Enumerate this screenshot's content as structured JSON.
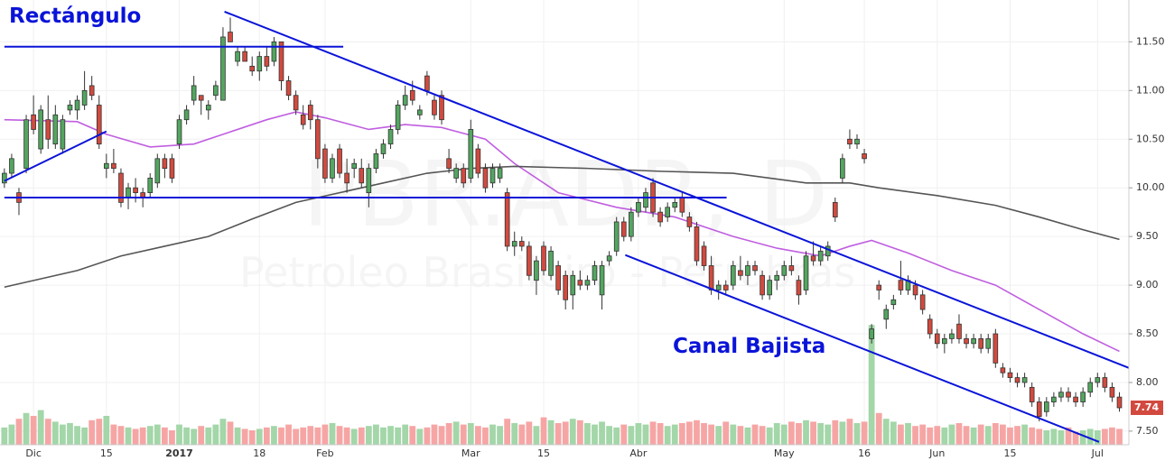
{
  "chart_data": {
    "type": "candlestick",
    "watermark": {
      "symbol": "PBR.ADR, D",
      "name": "Petroleo Brasileiro - Petrobras"
    },
    "annotations": [
      "Rectángulo",
      "Canal Bajista"
    ],
    "up_color": "#53a660",
    "down_color": "#d24a3f",
    "volume_up_color": "#a3d6a8",
    "volume_down_color": "#f6a5a5",
    "xlim": [
      -0.6,
      154.3
    ],
    "ylim": [
      7.36,
      11.93
    ],
    "vlim": [
      0,
      100
    ],
    "yticks": [
      {
        "value": 7.5,
        "label": "7.50"
      },
      {
        "value": 8,
        "label": "8.00"
      },
      {
        "value": 8.5,
        "label": "8.50"
      },
      {
        "value": 9,
        "label": "9.00"
      },
      {
        "value": 9.5,
        "label": "9.50"
      },
      {
        "value": 10,
        "label": "10.00"
      },
      {
        "value": 10.5,
        "label": "10.50"
      },
      {
        "value": 11,
        "label": "11.00"
      },
      {
        "value": 11.5,
        "label": "11.50"
      }
    ],
    "xticks": [
      {
        "value": 4,
        "label": "Dic"
      },
      {
        "value": 14,
        "label": "15"
      },
      {
        "value": 24,
        "label": "2017"
      },
      {
        "value": 35,
        "label": "18"
      },
      {
        "value": 44,
        "label": "Feb"
      },
      {
        "value": 64,
        "label": "Mar"
      },
      {
        "value": 74,
        "label": "15"
      },
      {
        "value": 87,
        "label": "Abr"
      },
      {
        "value": 107,
        "label": "May"
      },
      {
        "value": 118,
        "label": "16"
      },
      {
        "value": 128,
        "label": "Jun"
      },
      {
        "value": 138,
        "label": "15"
      },
      {
        "value": 150,
        "label": "Jul"
      }
    ],
    "ohlc": [
      [
        10.05,
        10.2,
        10.0,
        10.15
      ],
      [
        10.15,
        10.35,
        10.1,
        10.3
      ],
      [
        9.95,
        10.0,
        9.72,
        9.85
      ],
      [
        10.2,
        10.75,
        10.15,
        10.7
      ],
      [
        10.75,
        10.95,
        10.55,
        10.6
      ],
      [
        10.4,
        10.85,
        10.35,
        10.8
      ],
      [
        10.7,
        10.95,
        10.4,
        10.5
      ],
      [
        10.45,
        10.85,
        10.4,
        10.75
      ],
      [
        10.4,
        10.75,
        10.35,
        10.7
      ],
      [
        10.8,
        10.9,
        10.75,
        10.85
      ],
      [
        10.8,
        10.95,
        10.7,
        10.9
      ],
      [
        10.85,
        11.2,
        10.8,
        11.0
      ],
      [
        11.05,
        11.15,
        10.9,
        10.95
      ],
      [
        10.85,
        10.95,
        10.4,
        10.45
      ],
      [
        10.2,
        10.35,
        10.1,
        10.25
      ],
      [
        10.25,
        10.4,
        10.15,
        10.2
      ],
      [
        10.15,
        10.2,
        9.8,
        9.85
      ],
      [
        9.9,
        10.05,
        9.78,
        10.0
      ],
      [
        10.0,
        10.1,
        9.85,
        9.95
      ],
      [
        9.95,
        10.0,
        9.8,
        9.9
      ],
      [
        9.95,
        10.15,
        9.9,
        10.1
      ],
      [
        10.05,
        10.35,
        10.0,
        10.3
      ],
      [
        10.3,
        10.35,
        10.1,
        10.2
      ],
      [
        10.3,
        10.35,
        10.05,
        10.1
      ],
      [
        10.45,
        10.75,
        10.4,
        10.7
      ],
      [
        10.7,
        10.85,
        10.65,
        10.8
      ],
      [
        10.9,
        11.15,
        10.85,
        11.05
      ],
      [
        10.95,
        10.95,
        10.75,
        10.9
      ],
      [
        10.8,
        10.9,
        10.7,
        10.85
      ],
      [
        10.95,
        11.1,
        10.9,
        11.05
      ],
      [
        10.9,
        11.65,
        10.9,
        11.55
      ],
      [
        11.6,
        11.75,
        11.5,
        11.5
      ],
      [
        11.3,
        11.45,
        11.25,
        11.4
      ],
      [
        11.4,
        11.45,
        11.3,
        11.3
      ],
      [
        11.25,
        11.35,
        11.15,
        11.2
      ],
      [
        11.2,
        11.4,
        11.1,
        11.35
      ],
      [
        11.35,
        11.45,
        11.2,
        11.25
      ],
      [
        11.3,
        11.55,
        11.25,
        11.5
      ],
      [
        11.5,
        11.5,
        11.0,
        11.1
      ],
      [
        11.1,
        11.15,
        10.9,
        10.95
      ],
      [
        10.95,
        11.0,
        10.75,
        10.8
      ],
      [
        10.75,
        10.85,
        10.6,
        10.65
      ],
      [
        10.85,
        10.9,
        10.6,
        10.7
      ],
      [
        10.7,
        10.75,
        10.2,
        10.3
      ],
      [
        10.4,
        10.45,
        10.05,
        10.1
      ],
      [
        10.1,
        10.35,
        10.05,
        10.3
      ],
      [
        10.4,
        10.45,
        10.1,
        10.15
      ],
      [
        10.15,
        10.3,
        9.95,
        10.05
      ],
      [
        10.2,
        10.3,
        10.1,
        10.25
      ],
      [
        10.2,
        10.3,
        10.0,
        10.05
      ],
      [
        9.95,
        10.25,
        9.8,
        10.2
      ],
      [
        10.2,
        10.4,
        10.15,
        10.35
      ],
      [
        10.35,
        10.5,
        10.3,
        10.45
      ],
      [
        10.45,
        10.65,
        10.4,
        10.6
      ],
      [
        10.6,
        10.9,
        10.55,
        10.85
      ],
      [
        10.85,
        11.05,
        10.8,
        10.95
      ],
      [
        11.0,
        11.1,
        10.85,
        10.9
      ],
      [
        10.75,
        10.85,
        10.7,
        10.8
      ],
      [
        11.15,
        11.2,
        10.95,
        11.0
      ],
      [
        10.9,
        10.95,
        10.7,
        10.75
      ],
      [
        10.95,
        11.0,
        10.65,
        10.7
      ],
      [
        10.3,
        10.4,
        10.15,
        10.2
      ],
      [
        10.1,
        10.25,
        10.05,
        10.2
      ],
      [
        10.2,
        10.25,
        10.0,
        10.05
      ],
      [
        10.1,
        10.7,
        10.05,
        10.6
      ],
      [
        10.4,
        10.45,
        10.1,
        10.15
      ],
      [
        10.2,
        10.25,
        9.95,
        10.0
      ],
      [
        10.05,
        10.25,
        10.0,
        10.2
      ],
      [
        10.1,
        10.25,
        10.05,
        10.2
      ],
      [
        9.95,
        10.0,
        9.35,
        9.4
      ],
      [
        9.4,
        9.55,
        9.3,
        9.45
      ],
      [
        9.45,
        9.5,
        9.35,
        9.4
      ],
      [
        9.4,
        9.45,
        9.05,
        9.1
      ],
      [
        9.05,
        9.3,
        8.9,
        9.25
      ],
      [
        9.4,
        9.45,
        9.1,
        9.15
      ],
      [
        9.1,
        9.4,
        9.05,
        9.35
      ],
      [
        9.2,
        9.25,
        8.9,
        8.95
      ],
      [
        9.1,
        9.15,
        8.75,
        8.85
      ],
      [
        8.9,
        9.15,
        8.75,
        9.1
      ],
      [
        9.05,
        9.15,
        8.95,
        9.0
      ],
      [
        9.0,
        9.1,
        8.95,
        9.05
      ],
      [
        9.05,
        9.25,
        9.0,
        9.2
      ],
      [
        8.9,
        9.25,
        8.75,
        9.2
      ],
      [
        9.25,
        9.35,
        9.2,
        9.3
      ],
      [
        9.35,
        9.7,
        9.3,
        9.65
      ],
      [
        9.65,
        9.7,
        9.45,
        9.5
      ],
      [
        9.5,
        9.8,
        9.45,
        9.75
      ],
      [
        9.75,
        9.9,
        9.7,
        9.85
      ],
      [
        9.8,
        10.0,
        9.75,
        9.95
      ],
      [
        10.05,
        10.1,
        9.7,
        9.75
      ],
      [
        9.75,
        9.8,
        9.6,
        9.65
      ],
      [
        9.7,
        9.85,
        9.65,
        9.8
      ],
      [
        9.8,
        9.9,
        9.75,
        9.85
      ],
      [
        9.9,
        9.95,
        9.7,
        9.75
      ],
      [
        9.7,
        9.75,
        9.55,
        9.6
      ],
      [
        9.6,
        9.65,
        9.2,
        9.25
      ],
      [
        9.4,
        9.45,
        9.15,
        9.2
      ],
      [
        9.2,
        9.3,
        8.9,
        8.95
      ],
      [
        8.95,
        9.05,
        8.85,
        9.0
      ],
      [
        9.0,
        9.05,
        8.9,
        8.95
      ],
      [
        9.0,
        9.25,
        8.95,
        9.2
      ],
      [
        9.15,
        9.3,
        9.05,
        9.1
      ],
      [
        9.1,
        9.25,
        9.0,
        9.2
      ],
      [
        9.2,
        9.25,
        9.1,
        9.15
      ],
      [
        9.1,
        9.15,
        8.85,
        8.9
      ],
      [
        8.9,
        9.1,
        8.85,
        9.05
      ],
      [
        9.05,
        9.15,
        8.95,
        9.1
      ],
      [
        9.1,
        9.25,
        9.05,
        9.2
      ],
      [
        9.2,
        9.3,
        9.1,
        9.15
      ],
      [
        9.05,
        9.1,
        8.8,
        8.9
      ],
      [
        8.95,
        9.35,
        8.9,
        9.3
      ],
      [
        9.3,
        9.45,
        9.2,
        9.25
      ],
      [
        9.25,
        9.4,
        9.2,
        9.35
      ],
      [
        9.3,
        9.45,
        9.25,
        9.4
      ],
      [
        9.85,
        9.9,
        9.65,
        9.7
      ],
      [
        10.1,
        10.35,
        10.05,
        10.3
      ],
      [
        10.5,
        10.6,
        10.4,
        10.45
      ],
      [
        10.45,
        10.55,
        10.4,
        10.5
      ],
      [
        10.35,
        10.4,
        10.25,
        10.3
      ],
      [
        8.45,
        8.6,
        8.4,
        8.55
      ],
      [
        9.0,
        9.05,
        8.85,
        8.95
      ],
      [
        8.65,
        8.8,
        8.55,
        8.75
      ],
      [
        8.8,
        8.9,
        8.75,
        8.85
      ],
      [
        9.05,
        9.25,
        8.9,
        8.95
      ],
      [
        8.95,
        9.1,
        8.9,
        9.05
      ],
      [
        9.0,
        9.05,
        8.85,
        8.9
      ],
      [
        8.9,
        8.95,
        8.7,
        8.75
      ],
      [
        8.65,
        8.7,
        8.45,
        8.5
      ],
      [
        8.5,
        8.55,
        8.35,
        8.4
      ],
      [
        8.4,
        8.5,
        8.3,
        8.45
      ],
      [
        8.45,
        8.55,
        8.4,
        8.5
      ],
      [
        8.6,
        8.7,
        8.4,
        8.45
      ],
      [
        8.45,
        8.5,
        8.35,
        8.4
      ],
      [
        8.4,
        8.5,
        8.35,
        8.45
      ],
      [
        8.45,
        8.5,
        8.3,
        8.35
      ],
      [
        8.35,
        8.5,
        8.3,
        8.45
      ],
      [
        8.5,
        8.55,
        8.15,
        8.2
      ],
      [
        8.15,
        8.2,
        8.05,
        8.1
      ],
      [
        8.1,
        8.15,
        8.0,
        8.05
      ],
      [
        8.05,
        8.1,
        7.95,
        8.0
      ],
      [
        8.0,
        8.1,
        7.95,
        8.05
      ],
      [
        7.95,
        8.0,
        7.75,
        7.8
      ],
      [
        7.8,
        7.85,
        7.6,
        7.65
      ],
      [
        7.7,
        7.85,
        7.65,
        7.8
      ],
      [
        7.8,
        7.9,
        7.75,
        7.85
      ],
      [
        7.85,
        7.95,
        7.8,
        7.9
      ],
      [
        7.9,
        7.95,
        7.8,
        7.85
      ],
      [
        7.85,
        7.9,
        7.75,
        7.8
      ],
      [
        7.8,
        7.95,
        7.75,
        7.9
      ],
      [
        7.9,
        8.05,
        7.85,
        8.0
      ],
      [
        8.0,
        8.1,
        7.95,
        8.05
      ],
      [
        8.05,
        8.1,
        7.9,
        7.95
      ],
      [
        7.95,
        8.0,
        7.8,
        7.85
      ],
      [
        7.85,
        7.9,
        7.7,
        7.74
      ]
    ],
    "volume": [
      12,
      14,
      18,
      22,
      20,
      24,
      18,
      16,
      14,
      15,
      13,
      12,
      17,
      18,
      20,
      14,
      13,
      12,
      11,
      12,
      13,
      14,
      12,
      10,
      14,
      12,
      11,
      13,
      12,
      14,
      18,
      16,
      12,
      11,
      10,
      11,
      12,
      13,
      12,
      14,
      11,
      12,
      13,
      12,
      14,
      15,
      13,
      12,
      11,
      12,
      13,
      14,
      12,
      13,
      12,
      14,
      13,
      11,
      12,
      14,
      13,
      15,
      16,
      14,
      15,
      13,
      12,
      14,
      13,
      18,
      15,
      14,
      16,
      13,
      19,
      17,
      15,
      16,
      18,
      17,
      15,
      14,
      16,
      13,
      12,
      14,
      13,
      15,
      14,
      16,
      15,
      13,
      14,
      15,
      16,
      17,
      15,
      14,
      13,
      16,
      14,
      13,
      12,
      14,
      13,
      12,
      15,
      14,
      16,
      15,
      17,
      16,
      15,
      14,
      17,
      16,
      18,
      15,
      16,
      83,
      22,
      18,
      16,
      14,
      15,
      13,
      14,
      12,
      13,
      12,
      14,
      15,
      13,
      12,
      14,
      13,
      15,
      14,
      12,
      13,
      14,
      12,
      11,
      10,
      11,
      10,
      12,
      9,
      10,
      11,
      10,
      11,
      12,
      11
    ],
    "moving_averages": [
      {
        "color": "#c05ee0",
        "x": [
          0,
          10,
          14,
          20,
          26,
          30,
          36,
          40,
          44,
          50,
          55,
          60,
          66,
          70,
          76,
          84,
          92,
          100,
          106,
          112,
          116,
          119,
          124,
          130,
          136,
          142,
          148,
          153
        ],
        "y": [
          10.7,
          10.68,
          10.55,
          10.42,
          10.45,
          10.55,
          10.7,
          10.78,
          10.72,
          10.6,
          10.65,
          10.62,
          10.5,
          10.25,
          9.95,
          9.8,
          9.7,
          9.5,
          9.38,
          9.3,
          9.4,
          9.46,
          9.33,
          9.15,
          9.0,
          8.75,
          8.5,
          8.32
        ]
      },
      {
        "color": "#555555",
        "x": [
          0,
          10,
          16,
          22,
          28,
          34,
          40,
          46,
          52,
          58,
          64,
          70,
          80,
          90,
          100,
          110,
          116,
          120,
          128,
          136,
          142,
          148,
          153
        ],
        "y": [
          8.98,
          9.15,
          9.3,
          9.4,
          9.5,
          9.68,
          9.85,
          9.95,
          10.05,
          10.15,
          10.2,
          10.22,
          10.2,
          10.17,
          10.15,
          10.05,
          10.05,
          10.0,
          9.92,
          9.82,
          9.7,
          9.57,
          9.47
        ]
      }
    ],
    "trend_lines": {
      "color": "#0a14d8",
      "lines": [
        {
          "x": [
            0,
            46.5
          ],
          "y": [
            11.45,
            11.45
          ]
        },
        {
          "x": [
            0,
            99.1
          ],
          "y": [
            9.9,
            9.9
          ]
        },
        {
          "x": [
            0,
            14
          ],
          "y": [
            10.07,
            10.58
          ]
        },
        {
          "x": [
            30.2,
            154.3
          ],
          "y": [
            11.81,
            8.15
          ]
        },
        {
          "x": [
            85.2,
            150.2
          ],
          "y": [
            9.31,
            7.39
          ]
        }
      ]
    }
  }
}
